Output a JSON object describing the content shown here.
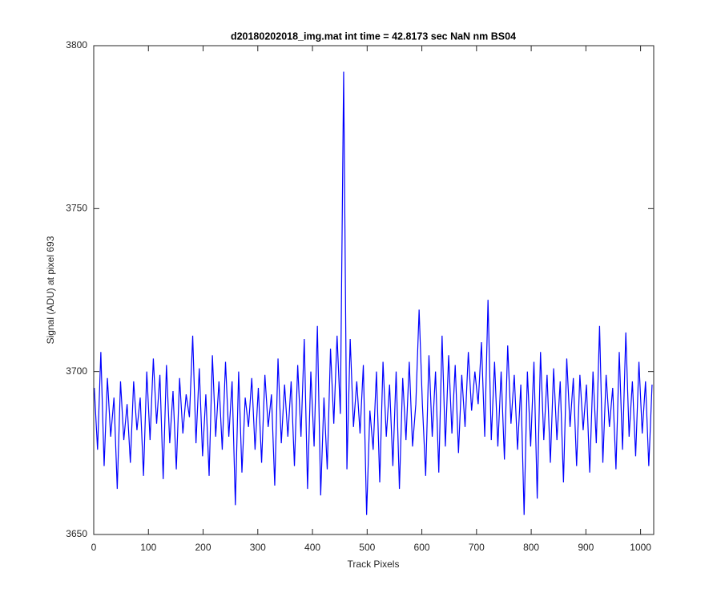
{
  "chart_data": {
    "type": "line",
    "title": "d20180202018_img.mat int time = 42.8173 sec  NaN nm BS04",
    "xlabel": "Track Pixels",
    "ylabel": "Signal (ADU) at pixel 693",
    "xlim": [
      0,
      1024
    ],
    "ylim": [
      3650,
      3800
    ],
    "xticks": [
      0,
      100,
      200,
      300,
      400,
      500,
      600,
      700,
      800,
      900,
      1000
    ],
    "yticks": [
      3650,
      3700,
      3750,
      3800
    ],
    "grid": false,
    "series": [
      {
        "color": "#0000ff",
        "x": [
          1,
          7,
          13,
          19,
          25,
          31,
          37,
          43,
          49,
          55,
          61,
          67,
          73,
          79,
          85,
          91,
          97,
          103,
          109,
          115,
          121,
          127,
          133,
          139,
          145,
          151,
          157,
          163,
          169,
          175,
          181,
          187,
          193,
          199,
          205,
          211,
          217,
          223,
          229,
          235,
          241,
          247,
          253,
          259,
          265,
          271,
          277,
          283,
          289,
          295,
          301,
          307,
          313,
          319,
          325,
          331,
          337,
          343,
          349,
          355,
          361,
          367,
          373,
          379,
          385,
          391,
          397,
          403,
          409,
          415,
          421,
          427,
          433,
          439,
          445,
          451,
          457,
          463,
          469,
          475,
          481,
          487,
          493,
          499,
          505,
          511,
          517,
          523,
          529,
          535,
          541,
          547,
          553,
          559,
          565,
          571,
          577,
          583,
          589,
          595,
          601,
          607,
          613,
          619,
          625,
          631,
          637,
          643,
          649,
          655,
          661,
          667,
          673,
          679,
          685,
          691,
          697,
          703,
          709,
          715,
          721,
          727,
          733,
          739,
          745,
          751,
          757,
          763,
          769,
          775,
          781,
          787,
          793,
          799,
          805,
          811,
          817,
          823,
          829,
          835,
          841,
          847,
          853,
          859,
          865,
          871,
          877,
          883,
          889,
          895,
          901,
          907,
          913,
          919,
          925,
          931,
          937,
          943,
          949,
          955,
          961,
          967,
          973,
          979,
          985,
          991,
          997,
          1003,
          1009,
          1015,
          1021
        ],
        "values": [
          3695,
          3676,
          3706,
          3671,
          3698,
          3680,
          3692,
          3664,
          3697,
          3679,
          3690,
          3672,
          3697,
          3682,
          3692,
          3668,
          3700,
          3679,
          3704,
          3684,
          3699,
          3667,
          3702,
          3678,
          3694,
          3670,
          3698,
          3681,
          3693,
          3686,
          3711,
          3678,
          3701,
          3674,
          3693,
          3668,
          3705,
          3680,
          3697,
          3676,
          3703,
          3680,
          3697,
          3659,
          3700,
          3669,
          3692,
          3683,
          3698,
          3676,
          3695,
          3672,
          3699,
          3683,
          3693,
          3665,
          3704,
          3678,
          3696,
          3680,
          3697,
          3671,
          3702,
          3680,
          3710,
          3664,
          3700,
          3677,
          3714,
          3662,
          3692,
          3670,
          3707,
          3684,
          3711,
          3687,
          3792,
          3670,
          3710,
          3683,
          3697,
          3681,
          3702,
          3656,
          3688,
          3676,
          3700,
          3666,
          3703,
          3680,
          3696,
          3671,
          3700,
          3664,
          3698,
          3679,
          3703,
          3677,
          3690,
          3719,
          3690,
          3668,
          3705,
          3680,
          3700,
          3669,
          3711,
          3677,
          3705,
          3681,
          3702,
          3675,
          3699,
          3683,
          3706,
          3688,
          3700,
          3690,
          3709,
          3680,
          3722,
          3679,
          3703,
          3677,
          3700,
          3673,
          3708,
          3684,
          3699,
          3676,
          3696,
          3656,
          3700,
          3677,
          3703,
          3661,
          3706,
          3679,
          3699,
          3672,
          3701,
          3679,
          3697,
          3666,
          3704,
          3683,
          3698,
          3671,
          3699,
          3682,
          3696,
          3669,
          3700,
          3678,
          3714,
          3672,
          3699,
          3683,
          3695,
          3670,
          3706,
          3676,
          3712,
          3680,
          3697,
          3674,
          3703,
          3681,
          3697,
          3671,
          3696
        ]
      }
    ]
  }
}
